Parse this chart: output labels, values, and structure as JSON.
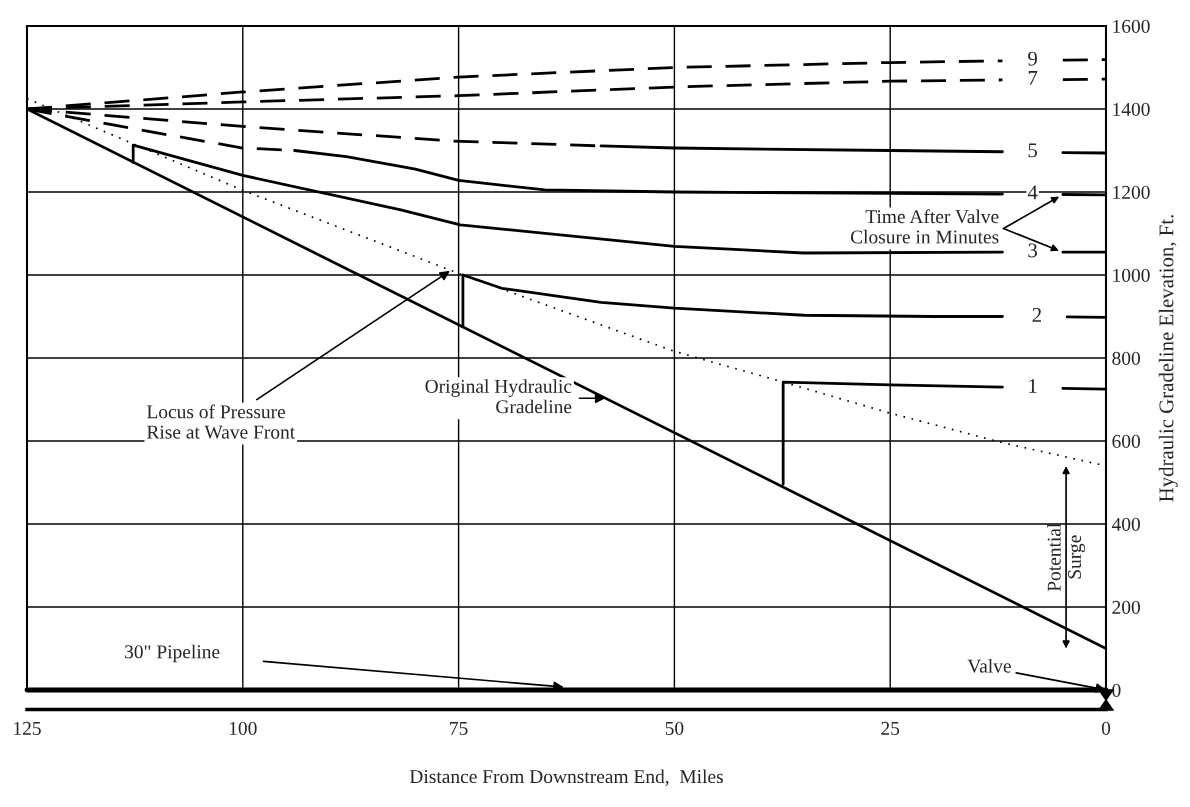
{
  "chart_data": {
    "type": "line",
    "xlabel": "Distance From Downstream End,  Miles",
    "ylabel": "Hydraulic Gradeline Elevation, Ft.",
    "xlim": [
      125,
      0
    ],
    "xticks": [
      125,
      100,
      75,
      50,
      25,
      0
    ],
    "ylim": [
      0,
      1600
    ],
    "yticks": [
      0,
      200,
      400,
      600,
      800,
      1000,
      1200,
      1400,
      1600
    ],
    "grid": true,
    "legend": "right",
    "series": [
      {
        "color": "#000000",
        "line_style": "solid",
        "x": [
          125,
          0
        ],
        "values": [
          1400,
          100
        ]
      },
      {
        "color": "#000000",
        "line_style": "dotted",
        "x": [
          125,
          100,
          74.5,
          50,
          37.4,
          25,
          12,
          0
        ],
        "values": [
          1425,
          1204,
          1000,
          816,
          742,
          667,
          596,
          540
        ]
      },
      {
        "name": "1",
        "color": "#000000",
        "line_style": "solid",
        "x": [
          37.4,
          37.4,
          25,
          12,
          8.5,
          5,
          0
        ],
        "values": [
          496,
          742,
          735,
          730,
          null,
          727,
          725
        ]
      },
      {
        "name": "2",
        "color": "#000000",
        "line_style": "solid",
        "x": [
          74.5,
          74.5,
          70,
          58.5,
          50,
          35,
          20,
          12,
          8,
          4.5,
          0
        ],
        "values": [
          875,
          1000,
          968,
          934,
          920,
          903,
          900,
          900,
          null,
          899,
          898
        ]
      },
      {
        "name": "3",
        "color": "#000000",
        "line_style": "solid",
        "x": [
          112.7,
          112.7,
          100,
          81.7,
          74.8,
          50,
          35,
          12,
          8.5,
          5,
          0
        ],
        "values": [
          1271,
          1313,
          1240,
          1157,
          1121,
          1069,
          1053,
          1055,
          null,
          1055,
          1055
        ]
      },
      {
        "color": "#000000",
        "line_style": "dashed",
        "x": [
          125,
          112,
          100,
          94
        ],
        "values": [
          1400,
          1350,
          1306,
          1300
        ]
      },
      {
        "name": "4",
        "color": "#000000",
        "line_style": "solid",
        "x": [
          94,
          88,
          80,
          75,
          65,
          50,
          25,
          12,
          8.5,
          5,
          0
        ],
        "values": [
          1300,
          1285,
          1255,
          1228,
          1205,
          1200,
          1197,
          1195,
          null,
          1194,
          1193
        ]
      },
      {
        "color": "#000000",
        "line_style": "dashed",
        "x": [
          125,
          100,
          75.9,
          58.5
        ],
        "values": [
          1400,
          1358,
          1323,
          1311
        ]
      },
      {
        "name": "5",
        "color": "#000000",
        "line_style": "solid",
        "x": [
          58.5,
          50,
          25,
          12,
          8.5,
          5,
          0
        ],
        "values": [
          1311,
          1306,
          1300,
          1297,
          null,
          1295,
          1294
        ]
      },
      {
        "name": "7",
        "color": "#000000",
        "line_style": "dashed",
        "x": [
          125,
          100,
          75,
          50,
          25,
          12,
          8.5,
          5,
          0
        ],
        "values": [
          1400,
          1417,
          1432,
          1453,
          1467,
          1470,
          null,
          1471,
          1472
        ]
      },
      {
        "name": "9",
        "color": "#000000",
        "line_style": "dashed",
        "x": [
          125,
          100,
          75,
          50,
          25,
          12,
          8.5,
          5,
          0
        ],
        "values": [
          1400,
          1441,
          1477,
          1500,
          1512,
          1516,
          null,
          1518,
          1519
        ]
      }
    ],
    "ref_lines": [
      {
        "axis": "y",
        "value": 0,
        "label": "30\" Pipeline",
        "line_style": "solid"
      }
    ],
    "annotations": [
      {
        "text": "Locus of Pressure\nRise at Wave Front",
        "x": 76,
        "y": 1010
      },
      {
        "text": "Original Hydraulic\nGradeline",
        "x": 58,
        "y": 703
      },
      "Time After Valve\nClosure in Minutes",
      "Potential\nSurge",
      {
        "text": "Valve",
        "x": 0,
        "y": 0
      }
    ]
  }
}
